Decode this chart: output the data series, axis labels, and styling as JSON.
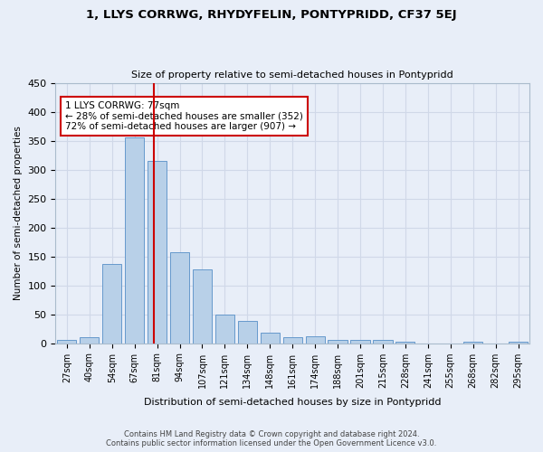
{
  "title": "1, LLYS CORRWG, RHYDYFELIN, PONTYPRIDD, CF37 5EJ",
  "subtitle": "Size of property relative to semi-detached houses in Pontypridd",
  "xlabel": "Distribution of semi-detached houses by size in Pontypridd",
  "ylabel": "Number of semi-detached properties",
  "categories": [
    "27sqm",
    "40sqm",
    "54sqm",
    "67sqm",
    "81sqm",
    "94sqm",
    "107sqm",
    "121sqm",
    "134sqm",
    "148sqm",
    "161sqm",
    "174sqm",
    "188sqm",
    "201sqm",
    "215sqm",
    "228sqm",
    "241sqm",
    "255sqm",
    "268sqm",
    "282sqm",
    "295sqm"
  ],
  "values": [
    5,
    10,
    137,
    355,
    315,
    158,
    127,
    50,
    38,
    19,
    10,
    12,
    5,
    5,
    6,
    2,
    0,
    0,
    2,
    0,
    2
  ],
  "bar_color": "#b8d0e8",
  "bar_edge_color": "#6699cc",
  "marker_color": "#cc0000",
  "annotation_box_color": "#ffffff",
  "annotation_box_edge_color": "#cc0000",
  "marker_label": "1 LLYS CORRWG: 77sqm",
  "marker_pct_smaller": 28,
  "marker_count_smaller": 352,
  "marker_pct_larger": 72,
  "marker_count_larger": 907,
  "grid_color": "#d0d8e8",
  "bg_color": "#e8eef8",
  "ax_bg_color": "#e8eef8",
  "ylim": [
    0,
    450
  ],
  "yticks": [
    0,
    50,
    100,
    150,
    200,
    250,
    300,
    350,
    400,
    450
  ],
  "footer_line1": "Contains HM Land Registry data © Crown copyright and database right 2024.",
  "footer_line2": "Contains public sector information licensed under the Open Government Licence v3.0."
}
